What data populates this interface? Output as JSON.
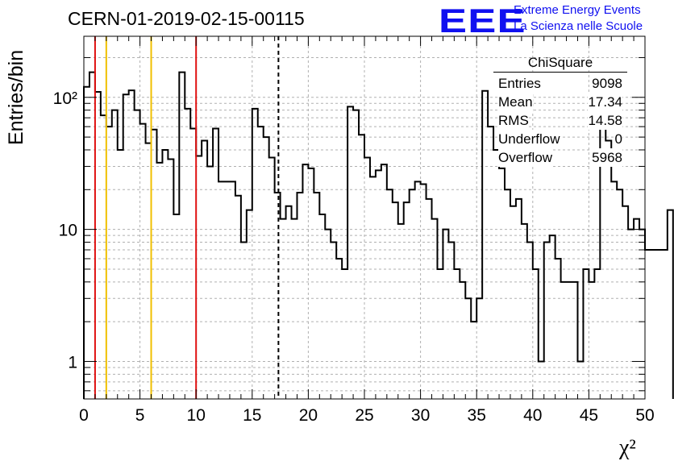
{
  "chart_data": {
    "type": "histogram",
    "title": "CERN-01-2019-02-15-00115",
    "xlabel": "χ²",
    "ylabel": "Entries/bin",
    "xlim": [
      0,
      50
    ],
    "ylim": [
      0.52,
      290
    ],
    "yscale": "log",
    "grid": true,
    "bin_width": 0.5,
    "x_ticks": [
      "0",
      "5",
      "10",
      "15",
      "20",
      "25",
      "30",
      "35",
      "40",
      "45",
      "50"
    ],
    "y_ticks": [
      {
        "value": 1,
        "label": "1"
      },
      {
        "value": 10,
        "label": "10"
      },
      {
        "value": 100,
        "label": "10²"
      }
    ],
    "counts": [
      120,
      155,
      110,
      73,
      60,
      80,
      40,
      105,
      113,
      80,
      63,
      45,
      57,
      32,
      40,
      34,
      13,
      155,
      82,
      58,
      36,
      47,
      30,
      58,
      23,
      23,
      23,
      18,
      8,
      14,
      82,
      60,
      50,
      35,
      19,
      12,
      15,
      12,
      19,
      31,
      29,
      19,
      13,
      10,
      8,
      6,
      5,
      85,
      80,
      52,
      35,
      25,
      28,
      31,
      20,
      16,
      11,
      16,
      20,
      23,
      22,
      17,
      12,
      5,
      10,
      8,
      5,
      4,
      3,
      2,
      3,
      112,
      60,
      40,
      29,
      20,
      15,
      17,
      11,
      8,
      5,
      1,
      8,
      9,
      6,
      4,
      4,
      4,
      1,
      5,
      4,
      5,
      90,
      47,
      23,
      20,
      15,
      10,
      12,
      10,
      7,
      7,
      7,
      7,
      14
    ],
    "vertical_lines": [
      {
        "x": 1,
        "color": "#e01010",
        "style": "solid"
      },
      {
        "x": 2,
        "color": "#f0c000",
        "style": "solid"
      },
      {
        "x": 6,
        "color": "#f0c000",
        "style": "solid"
      },
      {
        "x": 10,
        "color": "#e01010",
        "style": "solid"
      },
      {
        "x": 17.34,
        "color": "#000000",
        "style": "dashed"
      }
    ],
    "stats_box": {
      "title": "ChiSquare",
      "rows": [
        {
          "label": "Entries",
          "value": "9098"
        },
        {
          "label": "Mean",
          "value": "17.34"
        },
        {
          "label": "RMS",
          "value": "14.58"
        },
        {
          "label": "Underflow",
          "value": "0"
        },
        {
          "label": "Overflow",
          "value": "5968"
        }
      ]
    }
  },
  "logo": {
    "mark": "EEE",
    "line1": "Extreme Energy Events",
    "line2": "La Scienza nelle Scuole",
    "color": "#1010f0"
  }
}
